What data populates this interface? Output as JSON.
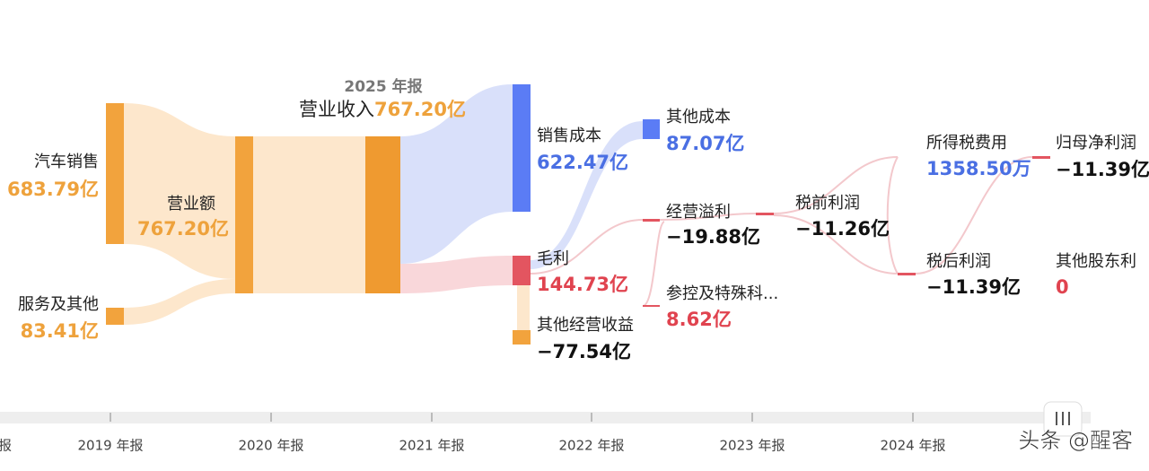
{
  "header": {
    "year": "2025 年报",
    "title": "营业收入",
    "amount": "767.20亿"
  },
  "nodes": [
    {
      "label": "汽车销售",
      "value": "683.79亿"
    },
    {
      "label": "服务及其他",
      "value": "83.41亿"
    },
    {
      "label": "营业额",
      "value": "767.20亿"
    },
    {
      "label": "销售成本",
      "value": "622.47亿"
    },
    {
      "label": "毛利",
      "value": "144.73亿"
    },
    {
      "label": "其他经营收益",
      "value": "−77.54亿"
    },
    {
      "label": "其他成本",
      "value": "87.07亿"
    },
    {
      "label": "经营溢利",
      "value": "−19.88亿"
    },
    {
      "label": "参控及特殊科...",
      "value": "8.62亿"
    },
    {
      "label": "税前利润",
      "value": "−11.26亿"
    },
    {
      "label": "所得税费用",
      "value": "1358.50万"
    },
    {
      "label": "税后利润",
      "value": "−11.39亿"
    },
    {
      "label": "归母净利润",
      "value": "−11.39亿"
    },
    {
      "label": "其他股东利",
      "value": "0"
    }
  ],
  "timeline": [
    "报",
    "2019 年报",
    "2020 年报",
    "2021 年报",
    "2022 年报",
    "2023 年报",
    "2024 年报"
  ],
  "watermark": "头条 @醒客"
}
